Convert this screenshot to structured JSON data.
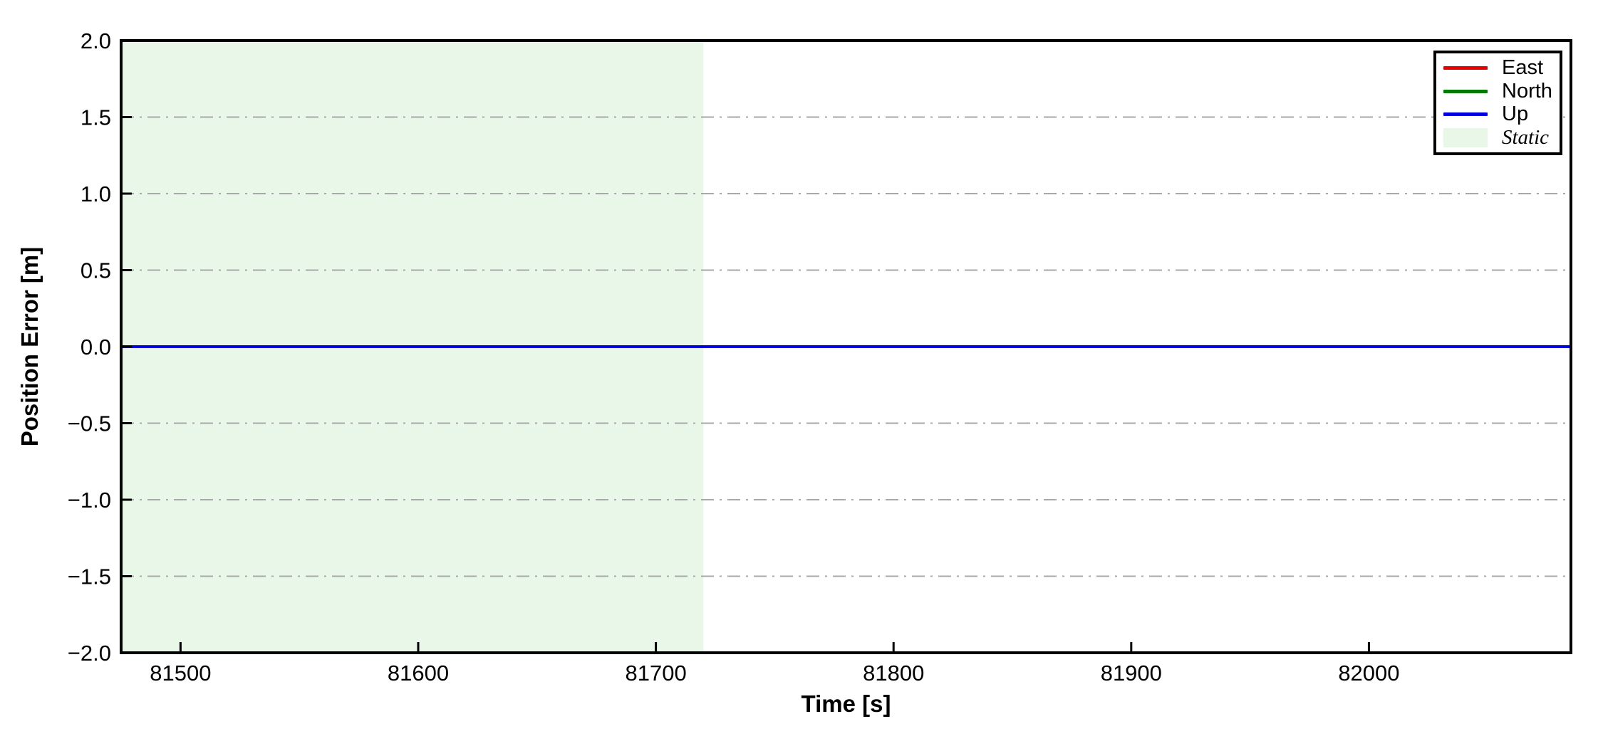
{
  "chart_data": {
    "type": "line",
    "title": "",
    "xlabel": "Time [s]",
    "ylabel": "Position Error [m]",
    "xlim": [
      81475,
      82085
    ],
    "ylim": [
      -2.0,
      2.0
    ],
    "xticks": [
      81500,
      81600,
      81700,
      81800,
      81900,
      82000
    ],
    "xtick_labels": [
      "81500",
      "81600",
      "81700",
      "81800",
      "81900",
      "82000"
    ],
    "yticks": [
      2.0,
      1.5,
      1.0,
      0.5,
      0.0,
      -0.5,
      -1.0,
      -1.5,
      -2.0
    ],
    "ytick_labels": [
      "2.0",
      "1.5",
      "1.0",
      "0.5",
      "0.0",
      "−0.5",
      "−1.0",
      "−1.5",
      "−2.0"
    ],
    "grid": {
      "axis": "y",
      "linestyle": "dash-dot",
      "color": "#a8a8a8",
      "on": true
    },
    "frame_color": "#000000",
    "background": "#ffffff",
    "series": [
      {
        "name": "East",
        "color": "#e60000",
        "x": [
          81475,
          82085
        ],
        "y": [
          0.0,
          0.0
        ]
      },
      {
        "name": "North",
        "color": "#007a00",
        "x": [
          81475,
          82085
        ],
        "y": [
          0.0,
          0.0
        ]
      },
      {
        "name": "Up",
        "color": "#0000dd",
        "x": [
          81475,
          82085
        ],
        "y": [
          0.0,
          0.0
        ]
      }
    ],
    "regions": [
      {
        "name": "Static",
        "x_start": 81475,
        "x_end": 81720,
        "color": "#e9f7e9"
      }
    ],
    "legend": {
      "position": "upper right",
      "labels": [
        "East",
        "North",
        "Up",
        "Static"
      ]
    }
  }
}
